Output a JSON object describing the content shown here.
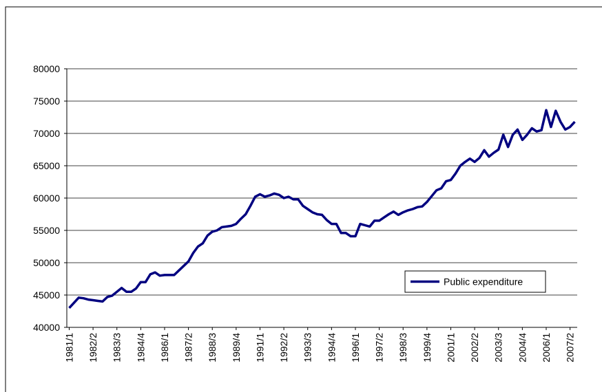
{
  "chart_data": {
    "type": "line",
    "categories": [
      "1981/1",
      null,
      null,
      null,
      null,
      "1982/2",
      null,
      null,
      null,
      null,
      "1983/3",
      null,
      null,
      null,
      null,
      "1984/4",
      null,
      null,
      null,
      null,
      "1986/1",
      null,
      null,
      null,
      null,
      "1987/2",
      null,
      null,
      null,
      null,
      "1988/3",
      null,
      null,
      null,
      null,
      "1989/4",
      null,
      null,
      null,
      null,
      "1991/1",
      null,
      null,
      null,
      null,
      "1992/2",
      null,
      null,
      null,
      null,
      "1993/3",
      null,
      null,
      null,
      null,
      "1994/4",
      null,
      null,
      null,
      null,
      "1996/1",
      null,
      null,
      null,
      null,
      "1997/2",
      null,
      null,
      null,
      null,
      "1998/3",
      null,
      null,
      null,
      null,
      "1999/4",
      null,
      null,
      null,
      null,
      "2001/1",
      null,
      null,
      null,
      null,
      "2002/2",
      null,
      null,
      null,
      null,
      "2003/3",
      null,
      null,
      null,
      null,
      "2004/4",
      null,
      null,
      null,
      null,
      "2006/1",
      null,
      null,
      null,
      null,
      "2007/2",
      null
    ],
    "series": [
      {
        "name": "Public expenditure",
        "color": "#000080",
        "values": [
          43000,
          43800,
          44600,
          44500,
          44300,
          44200,
          44100,
          44000,
          44700,
          44900,
          45500,
          46100,
          45500,
          45500,
          46000,
          47000,
          47000,
          48200,
          48500,
          48000,
          48100,
          48100,
          48100,
          48800,
          49500,
          50200,
          51500,
          52500,
          53000,
          54200,
          54800,
          55000,
          55500,
          55600,
          55700,
          56000,
          56800,
          57500,
          58800,
          60200,
          60600,
          60200,
          60400,
          60700,
          60500,
          60000,
          60200,
          59800,
          59800,
          58800,
          58300,
          57800,
          57500,
          57400,
          56600,
          56000,
          56000,
          54600,
          54600,
          54100,
          54100,
          56000,
          55800,
          55600,
          56500,
          56500,
          57000,
          57500,
          57900,
          57400,
          57800,
          58100,
          58300,
          58600,
          58700,
          59400,
          60300,
          61200,
          61500,
          62600,
          62800,
          63800,
          65000,
          65600,
          66100,
          65600,
          66200,
          67400,
          66400,
          67000,
          67500,
          69800,
          67900,
          69800,
          70600,
          69000,
          69800,
          70800,
          70300,
          70500,
          73600,
          71000,
          73500,
          71800,
          70600,
          71000,
          71800
        ]
      }
    ],
    "ylim": [
      40000,
      80000
    ],
    "yticks": [
      40000,
      45000,
      50000,
      55000,
      60000,
      65000,
      70000,
      75000,
      80000
    ],
    "grid": true,
    "legend": "center-right"
  }
}
